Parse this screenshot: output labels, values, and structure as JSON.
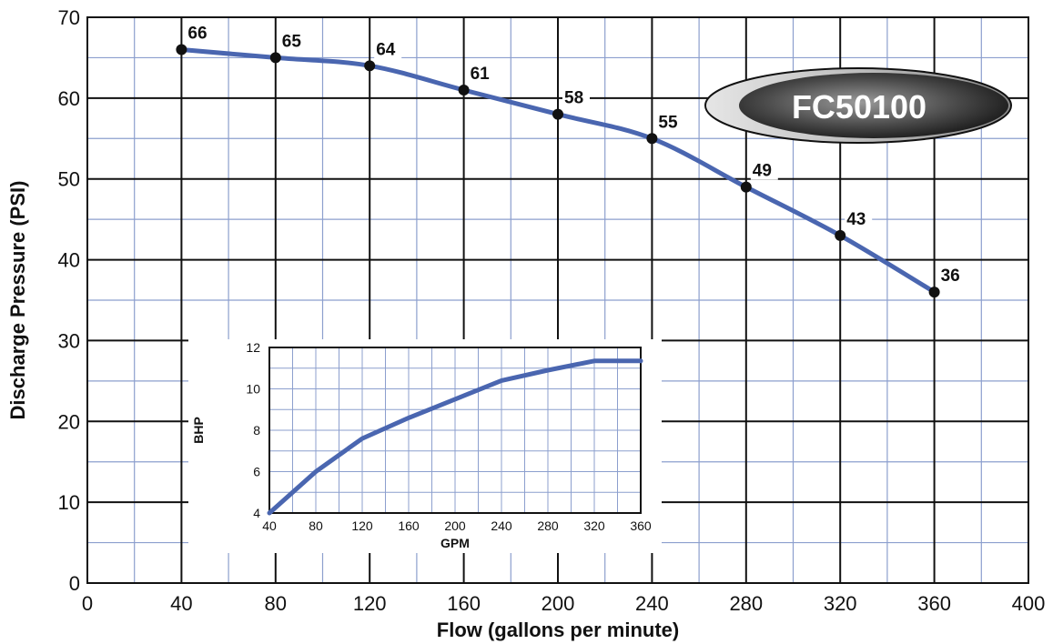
{
  "chart_data": [
    {
      "type": "line",
      "title": "",
      "xlabel": "Flow (gallons per minute)",
      "ylabel": "Discharge Pressure (PSI)",
      "xlim": [
        0,
        400
      ],
      "ylim": [
        0,
        70
      ],
      "x_ticks": [
        "0",
        "40",
        "80",
        "120",
        "160",
        "200",
        "240",
        "280",
        "320",
        "360",
        "400"
      ],
      "y_ticks": [
        "0",
        "10",
        "20",
        "30",
        "40",
        "50",
        "60",
        "70"
      ],
      "grid": true,
      "series": [
        {
          "x": [
            40,
            80,
            120,
            160,
            200,
            240,
            280,
            320,
            360
          ],
          "y": [
            66,
            65,
            64,
            61,
            58,
            55,
            49,
            43,
            36
          ],
          "labels": [
            "66",
            "65",
            "64",
            "61",
            "58",
            "55",
            "49",
            "43",
            "36"
          ]
        }
      ],
      "badge": "FC50100",
      "colors": {
        "line": "#4a66b0",
        "grid_minor": "#8c9fce",
        "grid_major": "#111111",
        "marker": "#111111"
      }
    },
    {
      "type": "line",
      "title": "",
      "xlabel": "GPM",
      "ylabel": "BHP",
      "xlim": [
        40,
        360
      ],
      "ylim": [
        4,
        12
      ],
      "x_ticks": [
        "40",
        "80",
        "120",
        "160",
        "200",
        "240",
        "280",
        "320",
        "360"
      ],
      "y_ticks": [
        "4",
        "6",
        "8",
        "10",
        "12"
      ],
      "grid": true,
      "series": [
        {
          "x": [
            40,
            80,
            120,
            160,
            200,
            240,
            280,
            320,
            360
          ],
          "y": [
            4,
            6,
            7.6,
            8.6,
            9.5,
            10.4,
            10.9,
            11.35,
            11.35
          ]
        }
      ],
      "colors": {
        "line": "#4a66b0",
        "grid_minor": "#8c9fce"
      }
    }
  ]
}
